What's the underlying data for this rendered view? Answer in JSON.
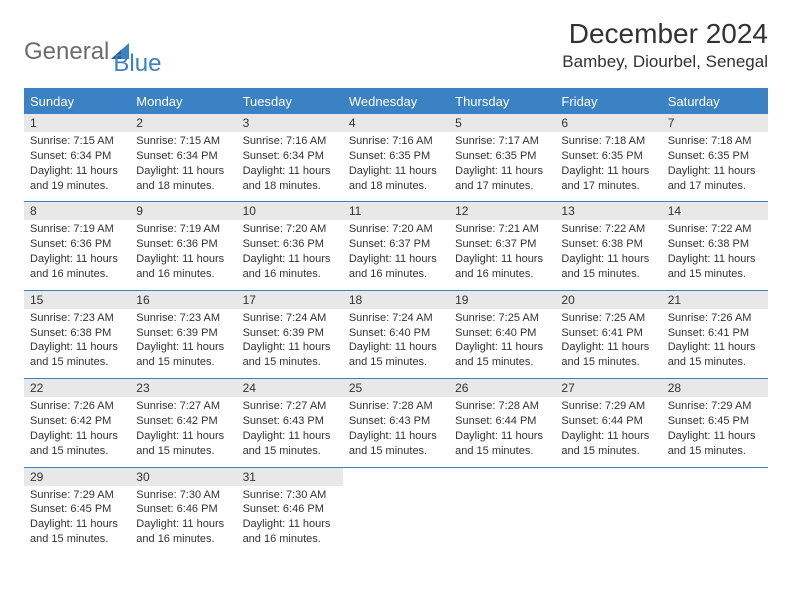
{
  "logo": {
    "word1": "General",
    "word2": "Blue"
  },
  "title": "December 2024",
  "location": "Bambey, Diourbel, Senegal",
  "colors": {
    "header_bg": "#3b82c4",
    "header_text": "#ffffff",
    "daynum_bg": "#e8e8e8",
    "border": "#3b82c4",
    "logo_gray": "#6c6c6c",
    "logo_blue": "#3b82c4",
    "body_text": "#333333",
    "page_bg": "#ffffff"
  },
  "typography": {
    "title_size": 28,
    "location_size": 17,
    "dayhead_size": 13,
    "cell_size": 11
  },
  "day_names": [
    "Sunday",
    "Monday",
    "Tuesday",
    "Wednesday",
    "Thursday",
    "Friday",
    "Saturday"
  ],
  "weeks": [
    [
      {
        "n": "1",
        "sr": "7:15 AM",
        "ss": "6:34 PM",
        "dl": "11 hours and 19 minutes."
      },
      {
        "n": "2",
        "sr": "7:15 AM",
        "ss": "6:34 PM",
        "dl": "11 hours and 18 minutes."
      },
      {
        "n": "3",
        "sr": "7:16 AM",
        "ss": "6:34 PM",
        "dl": "11 hours and 18 minutes."
      },
      {
        "n": "4",
        "sr": "7:16 AM",
        "ss": "6:35 PM",
        "dl": "11 hours and 18 minutes."
      },
      {
        "n": "5",
        "sr": "7:17 AM",
        "ss": "6:35 PM",
        "dl": "11 hours and 17 minutes."
      },
      {
        "n": "6",
        "sr": "7:18 AM",
        "ss": "6:35 PM",
        "dl": "11 hours and 17 minutes."
      },
      {
        "n": "7",
        "sr": "7:18 AM",
        "ss": "6:35 PM",
        "dl": "11 hours and 17 minutes."
      }
    ],
    [
      {
        "n": "8",
        "sr": "7:19 AM",
        "ss": "6:36 PM",
        "dl": "11 hours and 16 minutes."
      },
      {
        "n": "9",
        "sr": "7:19 AM",
        "ss": "6:36 PM",
        "dl": "11 hours and 16 minutes."
      },
      {
        "n": "10",
        "sr": "7:20 AM",
        "ss": "6:36 PM",
        "dl": "11 hours and 16 minutes."
      },
      {
        "n": "11",
        "sr": "7:20 AM",
        "ss": "6:37 PM",
        "dl": "11 hours and 16 minutes."
      },
      {
        "n": "12",
        "sr": "7:21 AM",
        "ss": "6:37 PM",
        "dl": "11 hours and 16 minutes."
      },
      {
        "n": "13",
        "sr": "7:22 AM",
        "ss": "6:38 PM",
        "dl": "11 hours and 15 minutes."
      },
      {
        "n": "14",
        "sr": "7:22 AM",
        "ss": "6:38 PM",
        "dl": "11 hours and 15 minutes."
      }
    ],
    [
      {
        "n": "15",
        "sr": "7:23 AM",
        "ss": "6:38 PM",
        "dl": "11 hours and 15 minutes."
      },
      {
        "n": "16",
        "sr": "7:23 AM",
        "ss": "6:39 PM",
        "dl": "11 hours and 15 minutes."
      },
      {
        "n": "17",
        "sr": "7:24 AM",
        "ss": "6:39 PM",
        "dl": "11 hours and 15 minutes."
      },
      {
        "n": "18",
        "sr": "7:24 AM",
        "ss": "6:40 PM",
        "dl": "11 hours and 15 minutes."
      },
      {
        "n": "19",
        "sr": "7:25 AM",
        "ss": "6:40 PM",
        "dl": "11 hours and 15 minutes."
      },
      {
        "n": "20",
        "sr": "7:25 AM",
        "ss": "6:41 PM",
        "dl": "11 hours and 15 minutes."
      },
      {
        "n": "21",
        "sr": "7:26 AM",
        "ss": "6:41 PM",
        "dl": "11 hours and 15 minutes."
      }
    ],
    [
      {
        "n": "22",
        "sr": "7:26 AM",
        "ss": "6:42 PM",
        "dl": "11 hours and 15 minutes."
      },
      {
        "n": "23",
        "sr": "7:27 AM",
        "ss": "6:42 PM",
        "dl": "11 hours and 15 minutes."
      },
      {
        "n": "24",
        "sr": "7:27 AM",
        "ss": "6:43 PM",
        "dl": "11 hours and 15 minutes."
      },
      {
        "n": "25",
        "sr": "7:28 AM",
        "ss": "6:43 PM",
        "dl": "11 hours and 15 minutes."
      },
      {
        "n": "26",
        "sr": "7:28 AM",
        "ss": "6:44 PM",
        "dl": "11 hours and 15 minutes."
      },
      {
        "n": "27",
        "sr": "7:29 AM",
        "ss": "6:44 PM",
        "dl": "11 hours and 15 minutes."
      },
      {
        "n": "28",
        "sr": "7:29 AM",
        "ss": "6:45 PM",
        "dl": "11 hours and 15 minutes."
      }
    ],
    [
      {
        "n": "29",
        "sr": "7:29 AM",
        "ss": "6:45 PM",
        "dl": "11 hours and 15 minutes."
      },
      {
        "n": "30",
        "sr": "7:30 AM",
        "ss": "6:46 PM",
        "dl": "11 hours and 16 minutes."
      },
      {
        "n": "31",
        "sr": "7:30 AM",
        "ss": "6:46 PM",
        "dl": "11 hours and 16 minutes."
      },
      null,
      null,
      null,
      null
    ]
  ],
  "labels": {
    "sunrise": "Sunrise:",
    "sunset": "Sunset:",
    "daylight": "Daylight:"
  }
}
